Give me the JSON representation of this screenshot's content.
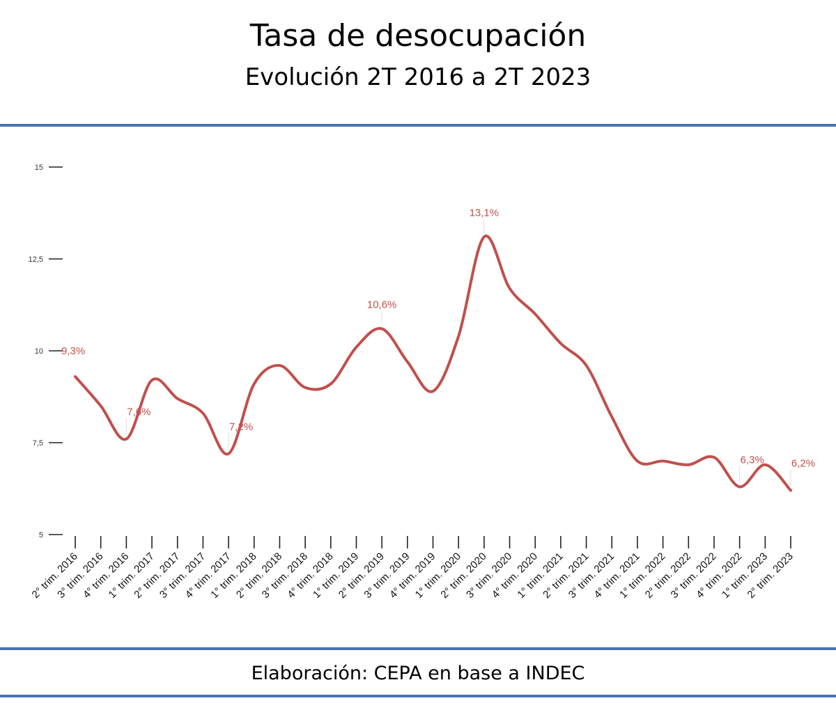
{
  "header": {
    "title": "Tasa de desocupación",
    "subtitle": "Evolución 2T 2016 a 2T 2023"
  },
  "footer": {
    "source": "Elaboración: CEPA en base a INDEC"
  },
  "colors": {
    "rule": "#4a72b8",
    "series": "#c0504d",
    "axis": "#222222"
  },
  "chart_data": {
    "type": "line",
    "title": "",
    "xlabel": "",
    "ylabel": "",
    "ylim": [
      5,
      15
    ],
    "yticks": [
      5,
      7.5,
      10,
      12.5,
      15
    ],
    "ytick_labels": [
      "5",
      "7,5",
      "10",
      "12,5",
      "15"
    ],
    "grid": false,
    "categories": [
      "2° trim. 2016",
      "3° trim. 2016",
      "4° trim. 2016",
      "1° trim. 2017",
      "2° trim. 2017",
      "3° trim. 2017",
      "4° trim. 2017",
      "1° trim. 2018",
      "2° trim. 2018",
      "3° trim. 2018",
      "4° trim. 2018",
      "1° trim. 2019",
      "2° trim. 2019",
      "3° trim. 2019",
      "4° trim. 2019",
      "1° trim. 2020",
      "2° trim. 2020",
      "3° trim. 2020",
      "4° trim. 2020",
      "1° trim. 2021",
      "2° trim. 2021",
      "3° trim. 2021",
      "4° trim. 2021",
      "1° trim. 2022",
      "2° trim. 2022",
      "3° trim. 2022",
      "4° trim. 2022",
      "1° trim. 2023",
      "2° trim. 2023"
    ],
    "series": [
      {
        "values": [
          9.3,
          8.5,
          7.6,
          9.2,
          8.7,
          8.3,
          7.2,
          9.1,
          9.6,
          9.0,
          9.1,
          10.1,
          10.6,
          9.7,
          8.9,
          10.4,
          13.1,
          11.7,
          11.0,
          10.2,
          9.6,
          8.2,
          7.0,
          7.0,
          6.9,
          7.1,
          6.3,
          6.9,
          6.2
        ]
      }
    ],
    "data_labels": [
      {
        "index": 0,
        "text": "9,3%"
      },
      {
        "index": 2,
        "text": "7,6%"
      },
      {
        "index": 6,
        "text": "7,2%"
      },
      {
        "index": 12,
        "text": "10,6%"
      },
      {
        "index": 16,
        "text": "13,1%"
      },
      {
        "index": 26,
        "text": "6,3%"
      },
      {
        "index": 28,
        "text": "6,2%"
      }
    ]
  }
}
